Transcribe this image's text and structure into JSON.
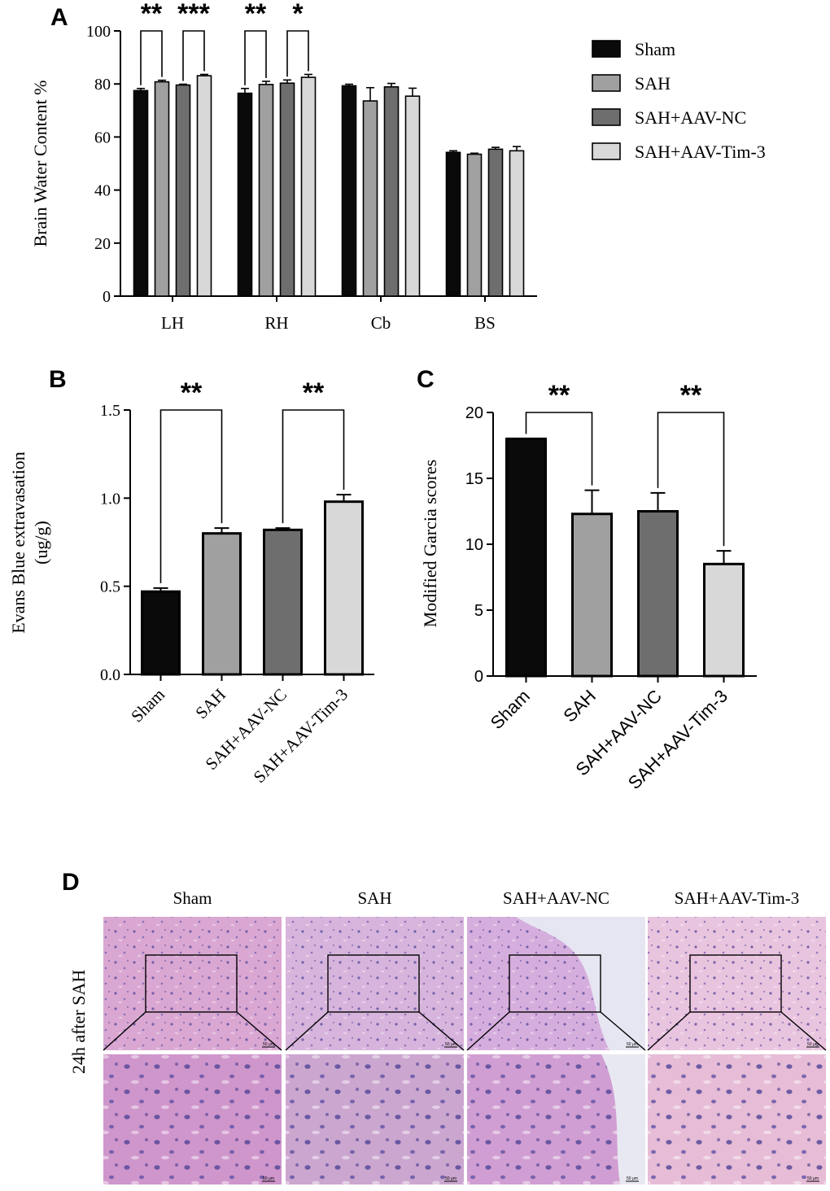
{
  "panel_labels": [
    "A",
    "B",
    "C",
    "D"
  ],
  "colors": {
    "sham": "#0a0a0a",
    "sah": "#a0a0a0",
    "sah_aav_nc": "#6e6e6e",
    "sah_aav_tim3": "#d8d8d8",
    "axis": "#000000"
  },
  "chart_data": [
    {
      "id": "A",
      "type": "bar",
      "title": "",
      "xlabel": "",
      "ylabel": "Brain Water Content %",
      "ylim": [
        0,
        100
      ],
      "yticks": [
        0,
        20,
        40,
        60,
        80,
        100
      ],
      "categories": [
        "LH",
        "RH",
        "Cb",
        "BS"
      ],
      "legend_position": "right",
      "series": [
        {
          "name": "Sham",
          "color_key": "sham",
          "values": [
            77.5,
            76.5,
            79.3,
            54.2
          ],
          "errors": [
            0.8,
            1.8,
            0.6,
            0.6
          ]
        },
        {
          "name": "SAH",
          "color_key": "sah",
          "values": [
            80.8,
            79.8,
            73.6,
            53.5
          ],
          "errors": [
            0.6,
            1.2,
            5.0,
            0.4
          ]
        },
        {
          "name": "SAH+AAV-NC",
          "color_key": "sah_aav_nc",
          "values": [
            79.6,
            80.3,
            78.9,
            55.4
          ],
          "errors": [
            0.3,
            1.2,
            1.3,
            0.7
          ]
        },
        {
          "name": "SAH+AAV-Tim-3",
          "color_key": "sah_aav_tim3",
          "values": [
            83.1,
            82.5,
            75.4,
            54.8
          ],
          "errors": [
            0.5,
            1.1,
            3.0,
            1.6
          ]
        }
      ],
      "significance": [
        {
          "category": 0,
          "pair": [
            0,
            1
          ],
          "label": "**"
        },
        {
          "category": 0,
          "pair": [
            2,
            3
          ],
          "label": "***"
        },
        {
          "category": 1,
          "pair": [
            0,
            1
          ],
          "label": "**"
        },
        {
          "category": 1,
          "pair": [
            2,
            3
          ],
          "label": "*"
        }
      ]
    },
    {
      "id": "B",
      "type": "bar",
      "title": "",
      "xlabel": "",
      "ylabel_lines": [
        "Evans Blue extravasation",
        "(ug/g)"
      ],
      "ylim": [
        0,
        1.5
      ],
      "yticks": [
        "0.0",
        "0.5",
        "1.0",
        "1.5"
      ],
      "categories": [
        "Sham",
        "SAH",
        "SAH+AAV-NC",
        "SAH+AAV-Tim-3"
      ],
      "color_keys": [
        "sham",
        "sah",
        "sah_aav_nc",
        "sah_aav_tim3"
      ],
      "values": [
        0.47,
        0.8,
        0.82,
        0.98
      ],
      "errors": [
        0.02,
        0.03,
        0.01,
        0.04
      ],
      "significance": [
        {
          "pair": [
            0,
            1
          ],
          "label": "**"
        },
        {
          "pair": [
            2,
            3
          ],
          "label": "**"
        }
      ]
    },
    {
      "id": "C",
      "type": "bar",
      "title": "",
      "xlabel": "",
      "ylabel": "Modified Garcia scores",
      "ylim": [
        0,
        20
      ],
      "yticks": [
        "0",
        "5",
        "10",
        "15",
        "20"
      ],
      "categories": [
        "Sham",
        "SAH",
        "SAH+AAV-NC",
        "SAH+AAV-Tim-3"
      ],
      "color_keys": [
        "sham",
        "sah",
        "sah_aav_nc",
        "sah_aav_tim3"
      ],
      "values": [
        18.0,
        12.3,
        12.5,
        8.5
      ],
      "errors": [
        0,
        1.8,
        1.4,
        1.0
      ],
      "significance": [
        {
          "pair": [
            0,
            1
          ],
          "label": "**"
        },
        {
          "pair": [
            2,
            3
          ],
          "label": "**"
        }
      ]
    }
  ],
  "panel_d": {
    "row_label": "24h after SAH",
    "columns": [
      "Sham",
      "SAH",
      "SAH+AAV-NC",
      "SAH+AAV-Tim-3"
    ],
    "scale_bar": "50 μm",
    "tissue_colors": [
      "#d9a7d2",
      "#d7b4dc",
      "#d6aedd",
      "#e9c4df"
    ],
    "zoom_colors": [
      "#cf96cc",
      "#cba6cf",
      "#d09ed2",
      "#e6bcd6"
    ]
  }
}
